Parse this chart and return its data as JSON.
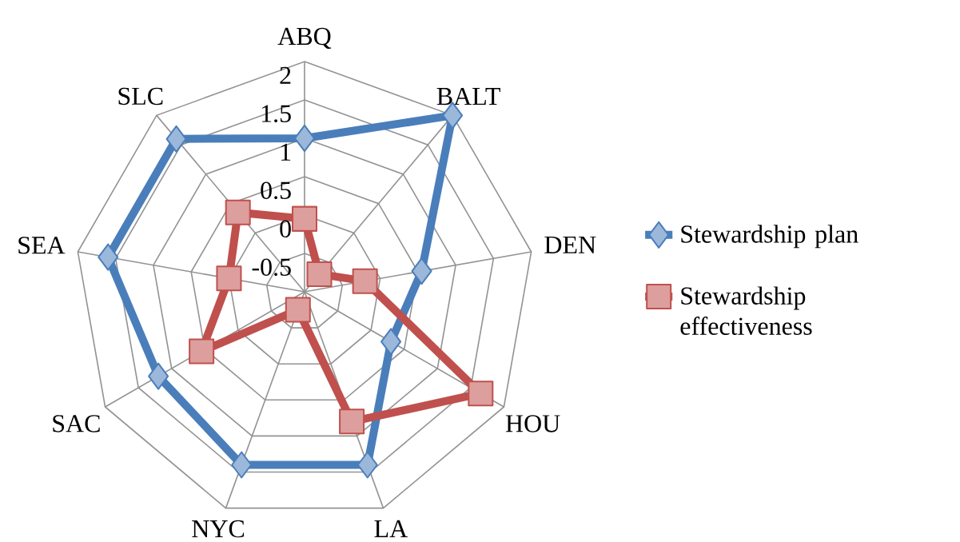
{
  "chart_data": {
    "type": "radar",
    "categories": [
      "ABQ",
      "BALT",
      "DEN",
      "HOU",
      "LA",
      "NYC",
      "SAC",
      "SEA",
      "SLC"
    ],
    "ylim": [
      -1,
      2
    ],
    "yticks": [
      -0.5,
      0,
      0.5,
      1,
      1.5,
      2
    ],
    "grid": true,
    "legend": "right",
    "series": [
      {
        "name": "Stewardship plan",
        "color": "#4a7ebb",
        "marker": "diamond",
        "values": [
          1.0,
          2.0,
          0.55,
          0.3,
          1.4,
          1.4,
          1.2,
          1.6,
          1.6
        ]
      },
      {
        "name": "Stewardship effectiveness",
        "color": "#c0504d",
        "marker": "square",
        "values": [
          -0.05,
          -0.7,
          -0.2,
          1.65,
          0.8,
          -0.75,
          0.55,
          0.0,
          0.35
        ]
      }
    ]
  }
}
